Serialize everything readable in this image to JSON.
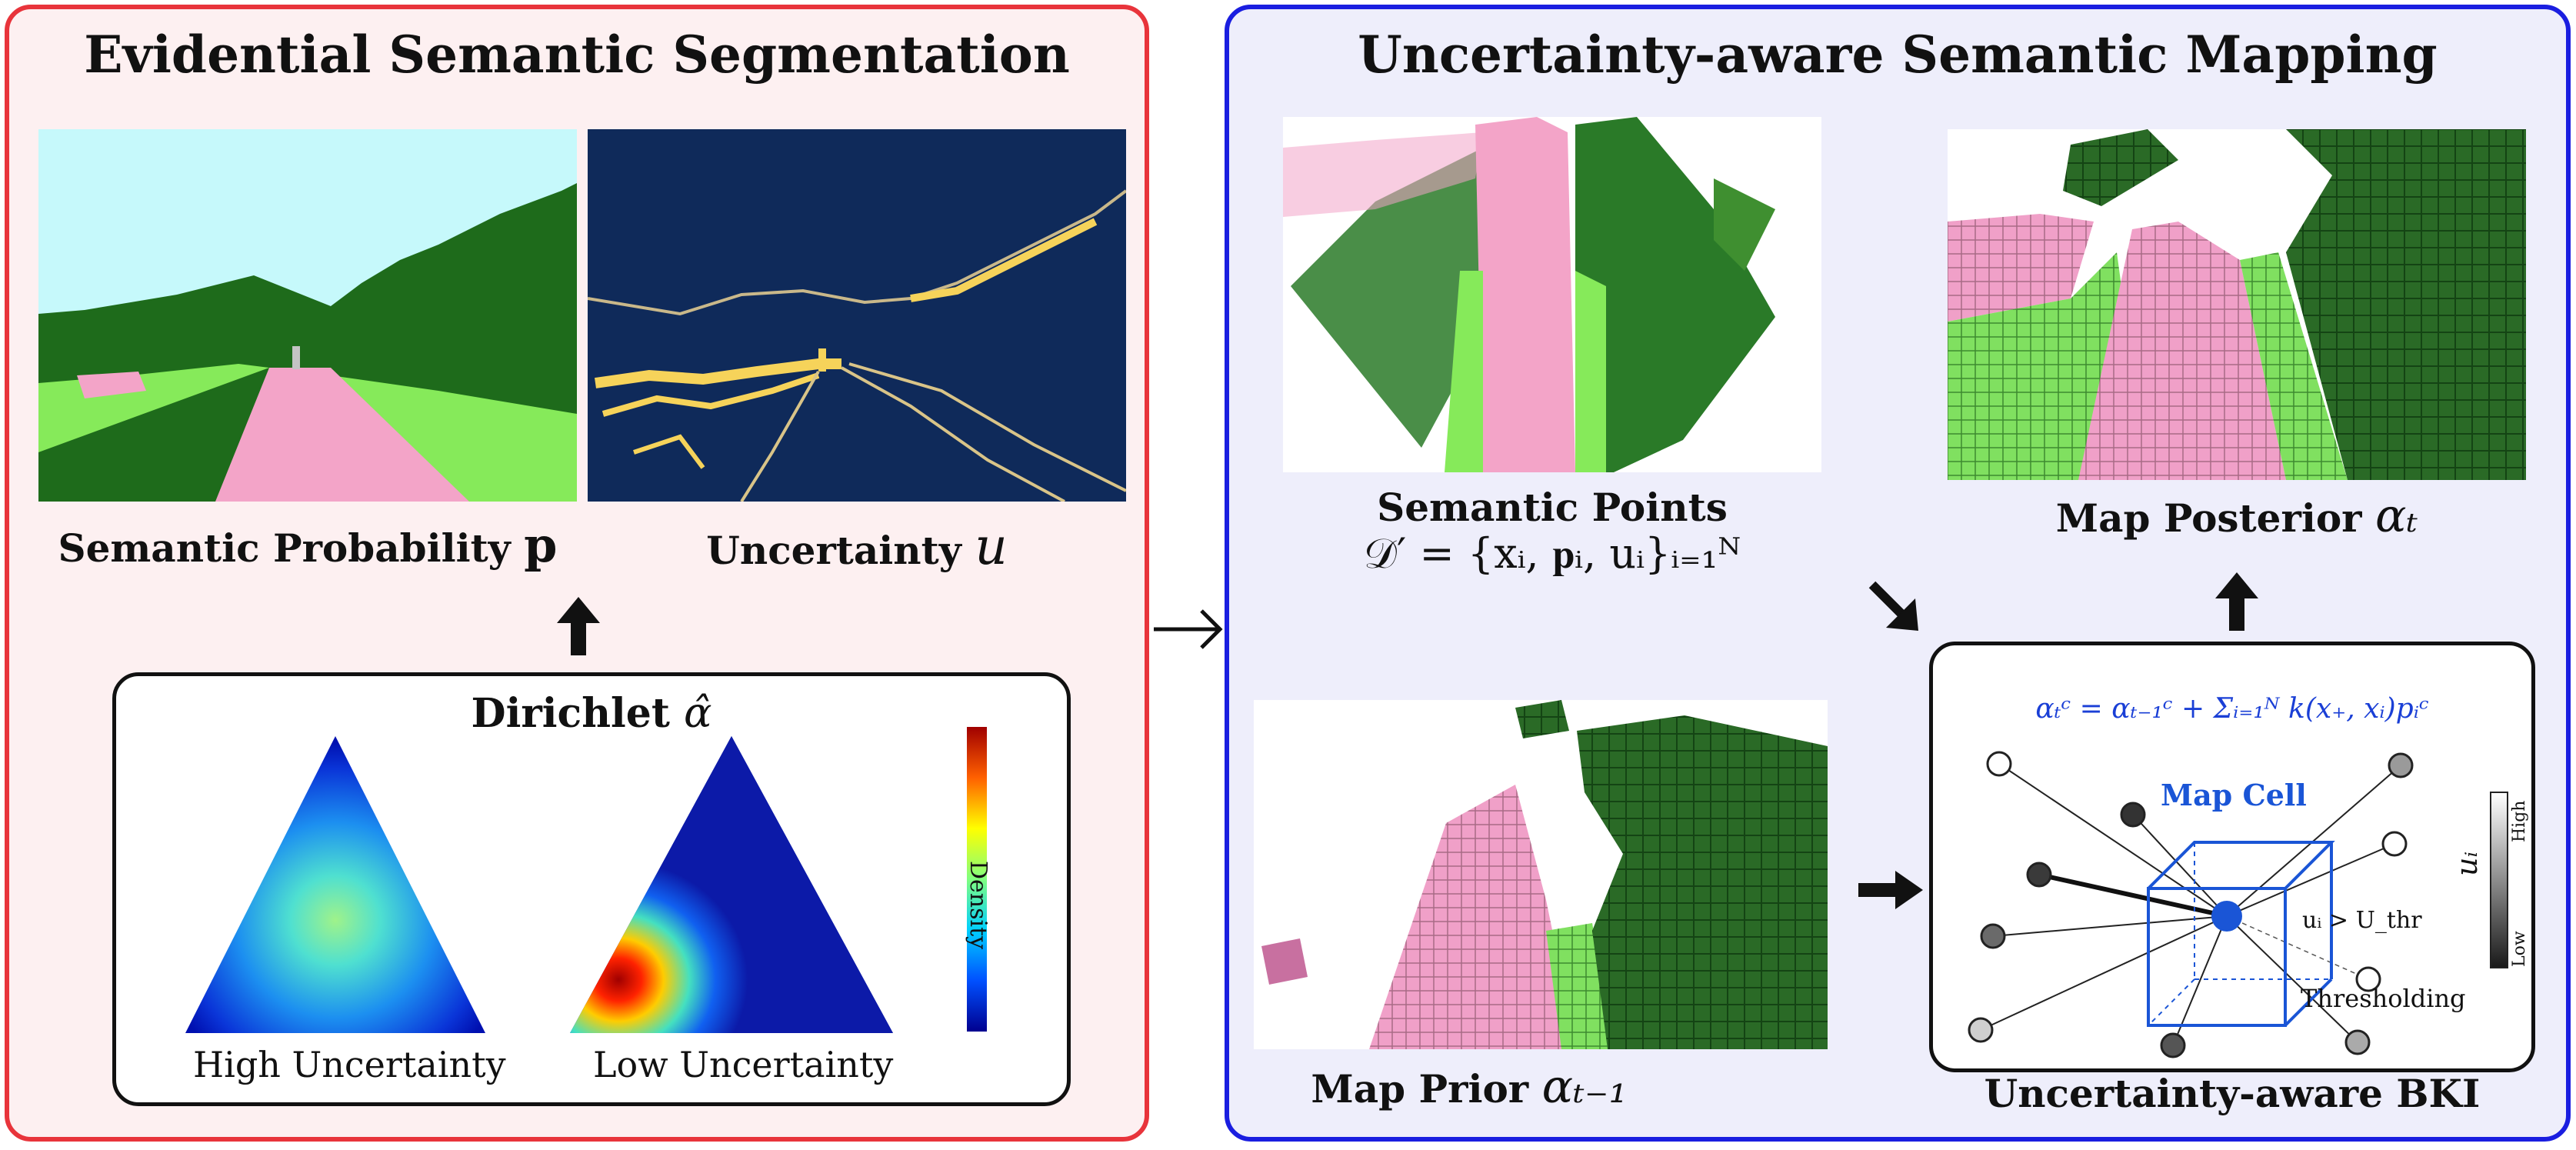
{
  "left_panel": {
    "title": "Evidential Semantic Segmentation",
    "border_color": "#e8343b",
    "bg_color": "#fdf0f1",
    "caption_semantic": "Semantic Probability",
    "caption_semantic_symbol": "p",
    "caption_uncertainty": "Uncertainty",
    "caption_uncertainty_symbol": "u",
    "dirichlet_box": {
      "title": "Dirichlet",
      "title_symbol": "α̂",
      "label_high": "High Uncertainty",
      "label_low": "Low Uncertainty",
      "colorbar_label": "Density"
    }
  },
  "right_panel": {
    "title": "Uncertainty-aware Semantic Mapping",
    "border_color": "#1a1ee0",
    "bg_color": "#eeeefb",
    "semantic_points_label": "Semantic Points",
    "semantic_points_formula": "𝒟′ = {xᵢ, 𝐩ᵢ, uᵢ}ᵢ₌₁ᴺ",
    "map_posterior_label": "Map Posterior",
    "map_posterior_symbol": "αₜ",
    "map_prior_label": "Map Prior",
    "map_prior_symbol": "αₜ₋₁",
    "bki_box": {
      "title": "Uncertainty-aware BKI",
      "formula": "αₜᶜ = αₜ₋₁ᶜ + Σᵢ₌₁ᴺ k(x₊, xᵢ)pᵢᶜ",
      "map_cell_label": "Map Cell",
      "threshold_formula": "uᵢ > U_thr",
      "thresholding_label": "Thresholding",
      "scale_high": "High",
      "scale_low": "Low",
      "scale_symbol": "uᵢ"
    }
  },
  "colors": {
    "road_pink": "#f3a4c8",
    "grass_light": "#86ea5a",
    "tree_dark": "#1e6b1b",
    "sky": "#c6f9fb",
    "uncert_bg": "#0f2a5a",
    "uncert_line": "#f6d35a",
    "formula_blue": "#1a3fd6"
  }
}
